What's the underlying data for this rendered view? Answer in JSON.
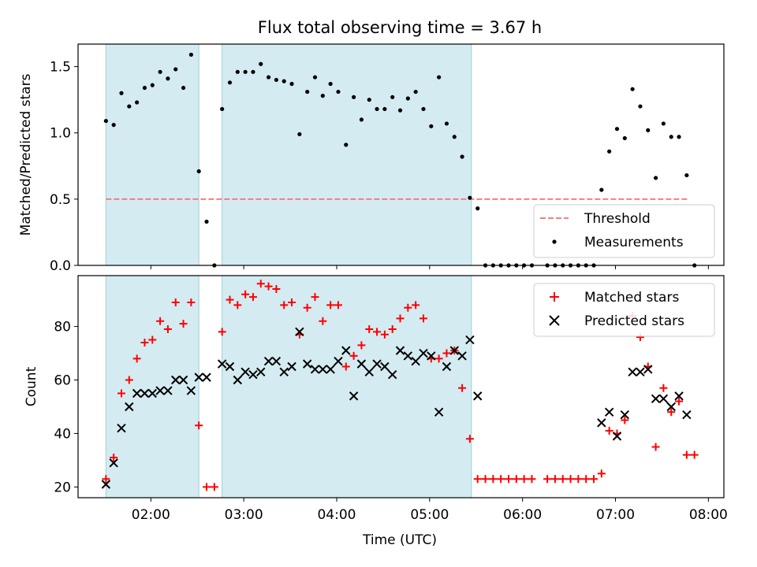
{
  "chart_data": [
    {
      "type": "scatter",
      "title": "Flux total observing time = 3.67 h",
      "xlabel": "",
      "ylabel": "Matched/Predicted stars",
      "xlim": [
        "01:13",
        "08:10"
      ],
      "ylim": [
        0,
        1.67
      ],
      "yticks": [
        0.0,
        0.5,
        1.0,
        1.5
      ],
      "ytick_labels": [
        "0.0",
        "0.5",
        "1.0",
        "1.5"
      ],
      "shaded_intervals": [
        [
          "01:31",
          "02:31"
        ],
        [
          "02:46",
          "05:27"
        ]
      ],
      "threshold": {
        "name": "Threshold",
        "value": 0.5,
        "x": [
          "01:31",
          "07:47"
        ],
        "color": "#f08080"
      },
      "legend": {
        "position": "lower-right",
        "entries": [
          "Threshold",
          "Measurements"
        ]
      },
      "series": [
        {
          "name": "Measurements",
          "color": "#000000",
          "points": [
            [
              "01:31",
              1.09
            ],
            [
              "01:36",
              1.06
            ],
            [
              "01:41",
              1.3
            ],
            [
              "01:46",
              1.2
            ],
            [
              "01:51",
              1.23
            ],
            [
              "01:56",
              1.34
            ],
            [
              "02:01",
              1.36
            ],
            [
              "02:06",
              1.46
            ],
            [
              "02:11",
              1.41
            ],
            [
              "02:16",
              1.48
            ],
            [
              "02:21",
              1.34
            ],
            [
              "02:26",
              1.59
            ],
            [
              "02:31",
              0.71
            ],
            [
              "02:36",
              0.33
            ],
            [
              "02:41",
              0.0
            ],
            [
              "02:46",
              1.18
            ],
            [
              "02:51",
              1.38
            ],
            [
              "02:56",
              1.46
            ],
            [
              "03:01",
              1.46
            ],
            [
              "03:06",
              1.46
            ],
            [
              "03:11",
              1.52
            ],
            [
              "03:16",
              1.42
            ],
            [
              "03:21",
              1.4
            ],
            [
              "03:26",
              1.39
            ],
            [
              "03:31",
              1.37
            ],
            [
              "03:36",
              0.99
            ],
            [
              "03:41",
              1.31
            ],
            [
              "03:46",
              1.42
            ],
            [
              "03:51",
              1.28
            ],
            [
              "03:56",
              1.37
            ],
            [
              "04:01",
              1.31
            ],
            [
              "04:06",
              0.91
            ],
            [
              "04:11",
              1.27
            ],
            [
              "04:16",
              1.1
            ],
            [
              "04:21",
              1.25
            ],
            [
              "04:26",
              1.18
            ],
            [
              "04:31",
              1.18
            ],
            [
              "04:36",
              1.27
            ],
            [
              "04:41",
              1.17
            ],
            [
              "04:46",
              1.26
            ],
            [
              "04:51",
              1.31
            ],
            [
              "04:56",
              1.18
            ],
            [
              "05:01",
              1.05
            ],
            [
              "05:06",
              1.42
            ],
            [
              "05:11",
              1.07
            ],
            [
              "05:16",
              0.97
            ],
            [
              "05:21",
              0.82
            ],
            [
              "05:26",
              0.51
            ],
            [
              "05:31",
              0.43
            ],
            [
              "05:36",
              0.0
            ],
            [
              "05:41",
              0.0
            ],
            [
              "05:46",
              0.0
            ],
            [
              "05:51",
              0.0
            ],
            [
              "05:56",
              0.0
            ],
            [
              "06:01",
              0.0
            ],
            [
              "06:06",
              0.0
            ],
            [
              "06:16",
              0.0
            ],
            [
              "06:21",
              0.0
            ],
            [
              "06:26",
              0.0
            ],
            [
              "06:31",
              0.0
            ],
            [
              "06:36",
              0.0
            ],
            [
              "06:41",
              0.0
            ],
            [
              "06:46",
              0.0
            ],
            [
              "06:51",
              0.57
            ],
            [
              "06:56",
              0.86
            ],
            [
              "07:01",
              1.03
            ],
            [
              "07:06",
              0.96
            ],
            [
              "07:11",
              1.33
            ],
            [
              "07:16",
              1.2
            ],
            [
              "07:21",
              1.02
            ],
            [
              "07:26",
              0.66
            ],
            [
              "07:31",
              1.07
            ],
            [
              "07:36",
              0.97
            ],
            [
              "07:41",
              0.97
            ],
            [
              "07:46",
              0.68
            ],
            [
              "07:51",
              0.0
            ]
          ]
        }
      ]
    },
    {
      "type": "scatter",
      "title": "",
      "xlabel": "Time (UTC)",
      "ylabel": "Count",
      "xlim": [
        "01:13",
        "08:10"
      ],
      "ylim": [
        16,
        99
      ],
      "xticks": [
        "02:00",
        "03:00",
        "04:00",
        "05:00",
        "06:00",
        "07:00",
        "08:00"
      ],
      "yticks": [
        20,
        40,
        60,
        80
      ],
      "ytick_labels": [
        "20",
        "40",
        "60",
        "80"
      ],
      "shaded_intervals": [
        [
          "01:31",
          "02:31"
        ],
        [
          "02:46",
          "05:27"
        ]
      ],
      "legend": {
        "position": "upper-right",
        "entries": [
          "Matched stars",
          "Predicted stars"
        ]
      },
      "series": [
        {
          "name": "Matched stars",
          "marker": "plus",
          "color": "#ff0000",
          "points": [
            [
              "01:31",
              23
            ],
            [
              "01:36",
              31
            ],
            [
              "01:41",
              55
            ],
            [
              "01:46",
              60
            ],
            [
              "01:51",
              68
            ],
            [
              "01:56",
              74
            ],
            [
              "02:01",
              75
            ],
            [
              "02:06",
              82
            ],
            [
              "02:11",
              79
            ],
            [
              "02:16",
              89
            ],
            [
              "02:21",
              81
            ],
            [
              "02:26",
              89
            ],
            [
              "02:31",
              43
            ],
            [
              "02:36",
              20
            ],
            [
              "02:41",
              20
            ],
            [
              "02:46",
              78
            ],
            [
              "02:51",
              90
            ],
            [
              "02:56",
              88
            ],
            [
              "03:01",
              92
            ],
            [
              "03:06",
              91
            ],
            [
              "03:11",
              96
            ],
            [
              "03:16",
              95
            ],
            [
              "03:21",
              94
            ],
            [
              "03:26",
              88
            ],
            [
              "03:31",
              89
            ],
            [
              "03:36",
              77
            ],
            [
              "03:41",
              87
            ],
            [
              "03:46",
              91
            ],
            [
              "03:51",
              82
            ],
            [
              "03:56",
              88
            ],
            [
              "04:01",
              88
            ],
            [
              "04:06",
              65
            ],
            [
              "04:11",
              69
            ],
            [
              "04:16",
              73
            ],
            [
              "04:21",
              79
            ],
            [
              "04:26",
              78
            ],
            [
              "04:31",
              77
            ],
            [
              "04:36",
              79
            ],
            [
              "04:41",
              83
            ],
            [
              "04:46",
              87
            ],
            [
              "04:51",
              88
            ],
            [
              "04:56",
              83
            ],
            [
              "05:01",
              68
            ],
            [
              "05:06",
              68
            ],
            [
              "05:11",
              70
            ],
            [
              "05:16",
              71
            ],
            [
              "05:21",
              57
            ],
            [
              "05:26",
              38
            ],
            [
              "05:31",
              23
            ],
            [
              "05:36",
              23
            ],
            [
              "05:41",
              23
            ],
            [
              "05:46",
              23
            ],
            [
              "05:51",
              23
            ],
            [
              "05:56",
              23
            ],
            [
              "06:01",
              23
            ],
            [
              "06:06",
              23
            ],
            [
              "06:16",
              23
            ],
            [
              "06:21",
              23
            ],
            [
              "06:26",
              23
            ],
            [
              "06:31",
              23
            ],
            [
              "06:36",
              23
            ],
            [
              "06:41",
              23
            ],
            [
              "06:46",
              23
            ],
            [
              "06:51",
              25
            ],
            [
              "06:56",
              41
            ],
            [
              "07:01",
              40
            ],
            [
              "07:06",
              45
            ],
            [
              "07:11",
              84
            ],
            [
              "07:16",
              76
            ],
            [
              "07:21",
              65
            ],
            [
              "07:26",
              35
            ],
            [
              "07:31",
              57
            ],
            [
              "07:36",
              48
            ],
            [
              "07:41",
              52
            ],
            [
              "07:46",
              32
            ],
            [
              "07:51",
              32
            ]
          ]
        },
        {
          "name": "Predicted stars",
          "marker": "x",
          "color": "#000000",
          "points": [
            [
              "01:31",
              21
            ],
            [
              "01:36",
              29
            ],
            [
              "01:41",
              42
            ],
            [
              "01:46",
              50
            ],
            [
              "01:51",
              55
            ],
            [
              "01:56",
              55
            ],
            [
              "02:01",
              55
            ],
            [
              "02:06",
              56
            ],
            [
              "02:11",
              56
            ],
            [
              "02:16",
              60
            ],
            [
              "02:21",
              60
            ],
            [
              "02:26",
              56
            ],
            [
              "02:31",
              61
            ],
            [
              "02:36",
              61
            ],
            [
              "02:46",
              66
            ],
            [
              "02:51",
              65
            ],
            [
              "02:56",
              60
            ],
            [
              "03:01",
              63
            ],
            [
              "03:06",
              62
            ],
            [
              "03:11",
              63
            ],
            [
              "03:16",
              67
            ],
            [
              "03:21",
              67
            ],
            [
              "03:26",
              63
            ],
            [
              "03:31",
              65
            ],
            [
              "03:36",
              78
            ],
            [
              "03:41",
              66
            ],
            [
              "03:46",
              64
            ],
            [
              "03:51",
              64
            ],
            [
              "03:56",
              64
            ],
            [
              "04:01",
              67
            ],
            [
              "04:06",
              71
            ],
            [
              "04:11",
              54
            ],
            [
              "04:16",
              66
            ],
            [
              "04:21",
              63
            ],
            [
              "04:26",
              66
            ],
            [
              "04:31",
              65
            ],
            [
              "04:36",
              62
            ],
            [
              "04:41",
              71
            ],
            [
              "04:46",
              69
            ],
            [
              "04:51",
              67
            ],
            [
              "04:56",
              70
            ],
            [
              "05:01",
              69
            ],
            [
              "05:06",
              48
            ],
            [
              "05:11",
              65
            ],
            [
              "05:16",
              71
            ],
            [
              "05:21",
              69
            ],
            [
              "05:26",
              75
            ],
            [
              "05:31",
              54
            ],
            [
              "06:51",
              44
            ],
            [
              "06:56",
              48
            ],
            [
              "07:01",
              39
            ],
            [
              "07:06",
              47
            ],
            [
              "07:11",
              63
            ],
            [
              "07:16",
              63
            ],
            [
              "07:21",
              64
            ],
            [
              "07:26",
              53
            ],
            [
              "07:31",
              53
            ],
            [
              "07:36",
              50
            ],
            [
              "07:41",
              54
            ],
            [
              "07:46",
              47
            ]
          ]
        }
      ]
    }
  ]
}
